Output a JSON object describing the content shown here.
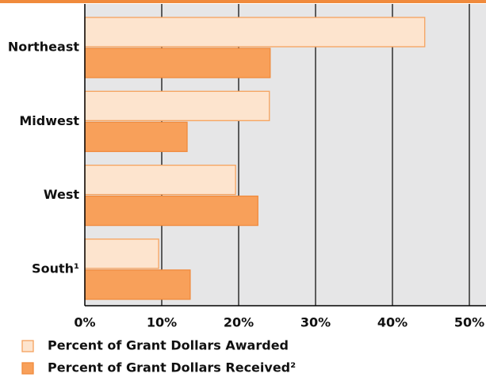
{
  "chart_data": {
    "type": "barh",
    "categories": [
      "Northeast",
      "Midwest",
      "West",
      "South¹"
    ],
    "series": [
      {
        "name": "Percent of Grant Dollars Awarded",
        "color": "#fde4ce",
        "edgecolor": "#f5a25e",
        "values": [
          44.2,
          24.0,
          19.6,
          9.6
        ]
      },
      {
        "name": "Percent of Grant Dollars Received²",
        "color": "#f8a05a",
        "edgecolor": "#f08a3c",
        "values": [
          24.1,
          13.3,
          22.5,
          13.7
        ]
      }
    ],
    "xlim": [
      0,
      50
    ],
    "xticks": [
      {
        "value": 0,
        "label": "0%"
      },
      {
        "value": 10,
        "label": "10%"
      },
      {
        "value": 20,
        "label": "20%"
      },
      {
        "value": 30,
        "label": "30%"
      },
      {
        "value": 40,
        "label": "40%"
      },
      {
        "value": 50,
        "label": "50%"
      }
    ],
    "grid": true
  }
}
